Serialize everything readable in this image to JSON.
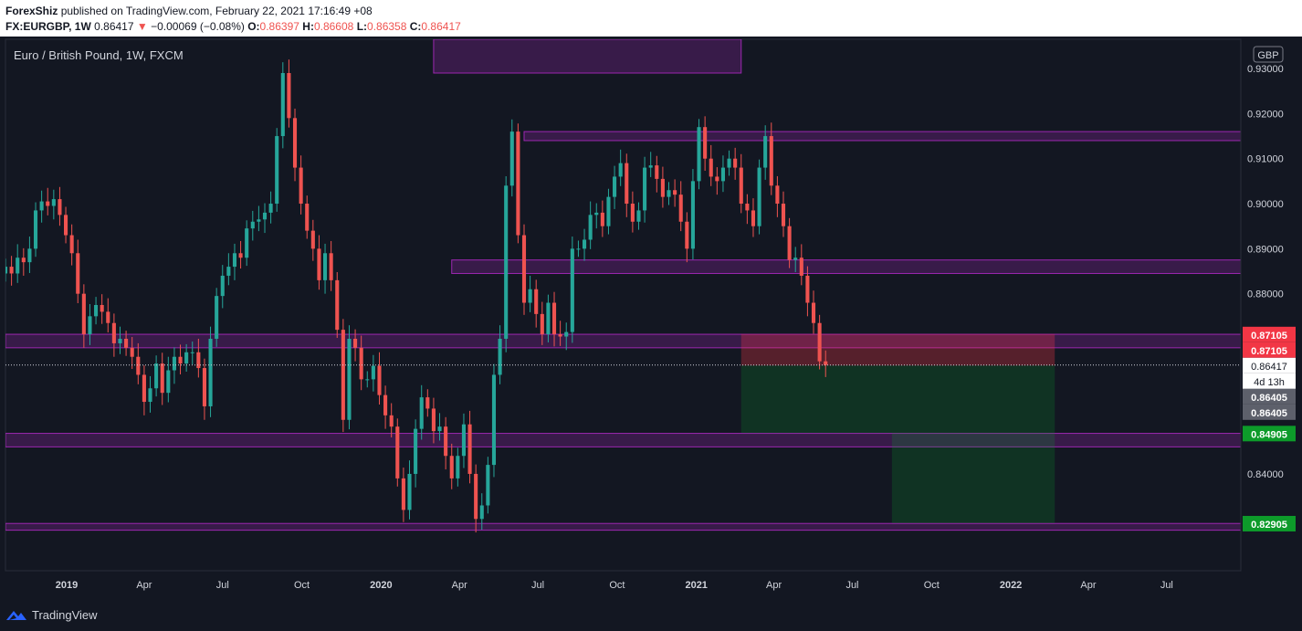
{
  "header": {
    "author": "ForexShiz",
    "published_text": "published on TradingView.com, February 22, 2021 17:16:49 +08",
    "symbol": "FX:EURGBP, 1W",
    "last": "0.86417",
    "change_arrow": "▼",
    "change": "−0.00069 (−0.08%)",
    "open_label": "O:",
    "open": "0.86397",
    "high_label": "H:",
    "high": "0.86608",
    "low_label": "L:",
    "low": "0.86358",
    "close_label": "C:",
    "close": "0.86417"
  },
  "footer": {
    "brand": "TradingView"
  },
  "colors": {
    "background": "#131722",
    "up": "#26a69a",
    "down": "#ef5350",
    "zone_border": "#9c27b0",
    "zone_fill": "rgba(156,39,176,0.28)",
    "stop_fill": "rgba(242,54,69,0.30)",
    "target_fill": "rgba(8,153,41,0.22)"
  },
  "chart_data": {
    "type": "candlestick",
    "title": "Euro / British Pound, 1W, FXCM",
    "currency": "GBP",
    "ylim": [
      0.8185,
      0.9365
    ],
    "y_ticks": [
      "0.84000",
      "0.88000",
      "0.89000",
      "0.90000",
      "0.91000",
      "0.92000",
      "0.93000"
    ],
    "x_ticks": [
      {
        "label": "2019",
        "date": "2019-01-01",
        "bold": true
      },
      {
        "label": "Apr",
        "date": "2019-04-01"
      },
      {
        "label": "Jul",
        "date": "2019-07-01"
      },
      {
        "label": "Oct",
        "date": "2019-10-01"
      },
      {
        "label": "2020",
        "date": "2020-01-01",
        "bold": true
      },
      {
        "label": "Apr",
        "date": "2020-04-01"
      },
      {
        "label": "Jul",
        "date": "2020-07-01"
      },
      {
        "label": "Oct",
        "date": "2020-10-01"
      },
      {
        "label": "2021",
        "date": "2021-01-01",
        "bold": true
      },
      {
        "label": "Apr",
        "date": "2021-04-01"
      },
      {
        "label": "Jul",
        "date": "2021-07-01"
      },
      {
        "label": "Oct",
        "date": "2021-10-01"
      },
      {
        "label": "2022",
        "date": "2022-01-01",
        "bold": true
      },
      {
        "label": "Apr",
        "date": "2022-04-01"
      },
      {
        "label": "Jul",
        "date": "2022-07-01"
      }
    ],
    "x_range": [
      "2018-10-22",
      "2022-09-25"
    ],
    "first_week": "2018-10-22",
    "closes": [
      0.886,
      0.8845,
      0.888,
      0.887,
      0.89,
      0.8985,
      0.9005,
      0.8995,
      0.901,
      0.8975,
      0.893,
      0.889,
      0.88,
      0.871,
      0.875,
      0.8775,
      0.876,
      0.8735,
      0.869,
      0.87,
      0.868,
      0.866,
      0.862,
      0.856,
      0.859,
      0.8645,
      0.858,
      0.863,
      0.866,
      0.8645,
      0.867,
      0.867,
      0.8635,
      0.855,
      0.87,
      0.8795,
      0.884,
      0.886,
      0.889,
      0.888,
      0.8945,
      0.896,
      0.8965,
      0.898,
      0.9,
      0.915,
      0.929,
      0.919,
      0.908,
      0.9,
      0.894,
      0.89,
      0.883,
      0.889,
      0.883,
      0.872,
      0.852,
      0.87,
      0.868,
      0.861,
      0.861,
      0.864,
      0.8575,
      0.853,
      0.8505,
      0.839,
      0.832,
      0.84,
      0.85,
      0.857,
      0.8545,
      0.8495,
      0.8505,
      0.844,
      0.839,
      0.844,
      0.851,
      0.84,
      0.83,
      0.833,
      0.842,
      0.862,
      0.87,
      0.904,
      0.916,
      0.893,
      0.878,
      0.881,
      0.8755,
      0.871,
      0.878,
      0.871,
      0.8705,
      0.8715,
      0.89,
      0.89,
      0.892,
      0.8975,
      0.898,
      0.895,
      0.9015,
      0.906,
      0.909,
      0.9,
      0.896,
      0.8985,
      0.908,
      0.9085,
      0.9055,
      0.9015,
      0.903,
      0.902,
      0.896,
      0.89,
      0.905,
      0.917,
      0.91,
      0.906,
      0.905,
      0.908,
      0.91,
      0.908,
      0.9,
      0.8985,
      0.895,
      0.908,
      0.915,
      0.904,
      0.9,
      0.895,
      0.8875,
      0.888,
      0.884,
      0.878,
      0.8735,
      0.865,
      0.8642
    ],
    "annotations": {
      "zones": [
        {
          "from": 0.929,
          "to": 0.9365,
          "start": "2020-03-02",
          "end": "2021-02-22"
        },
        {
          "from": 0.914,
          "to": 0.916,
          "start": "2020-06-15",
          "end": "extend"
        },
        {
          "from": 0.8845,
          "to": 0.8875,
          "start": "2020-03-23",
          "end": "extend"
        },
        {
          "from": 0.868,
          "to": 0.871,
          "start": "2018-10-22",
          "end": "extend"
        },
        {
          "from": 0.846,
          "to": 0.849,
          "start": "2018-10-22",
          "end": "extend"
        },
        {
          "from": 0.8275,
          "to": 0.829,
          "start": "2018-10-22",
          "end": "extend"
        }
      ],
      "position_1": {
        "entry": 0.86405,
        "stop": 0.87105,
        "target": 0.84905,
        "start": "2021-02-22",
        "end": "2022-02-21"
      },
      "position_2": {
        "entry": 0.84905,
        "target": 0.82905,
        "start": "2021-08-16",
        "end": "2022-02-21"
      }
    },
    "price_labels": [
      {
        "label": "0.87105",
        "value": 0.87105,
        "style": "stop"
      },
      {
        "label": "0.87105",
        "value": 0.87105,
        "style": "stop"
      },
      {
        "label": "0.86417",
        "value": 0.86417,
        "style": "last"
      },
      {
        "label": "4d 13h",
        "value": 0.8626,
        "style": "countdown"
      },
      {
        "label": "0.86405",
        "value": 0.86405,
        "style": "entry"
      },
      {
        "label": "0.86405",
        "value": 0.86405,
        "style": "entry"
      },
      {
        "label": "0.84905",
        "value": 0.84905,
        "style": "target"
      },
      {
        "label": "0.82905",
        "value": 0.82905,
        "style": "target"
      }
    ]
  }
}
